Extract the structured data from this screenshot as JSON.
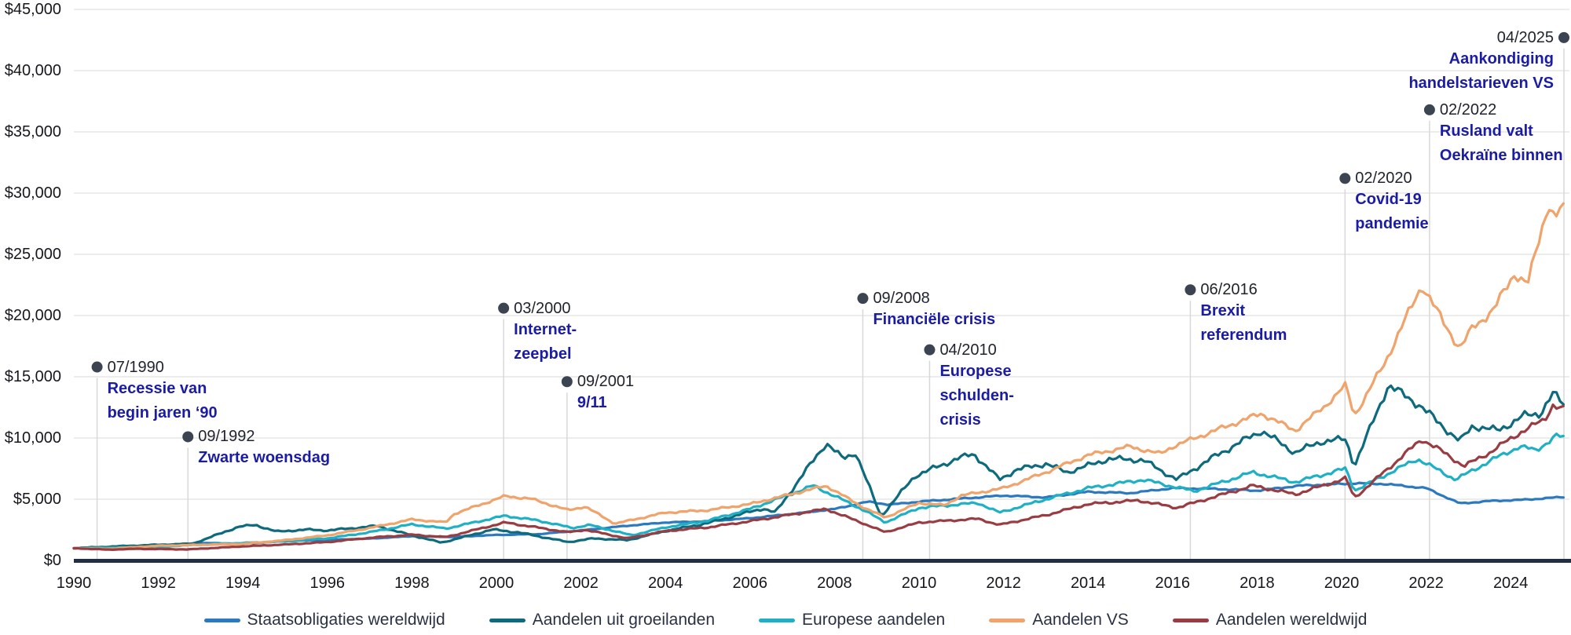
{
  "chart_data": {
    "type": "line",
    "title": "",
    "currency_prefix": "$",
    "y_axis": {
      "min": 0,
      "max": 45000,
      "step": 5000,
      "tick_labels": [
        "$0",
        "$5,000",
        "$10,000",
        "$15,000",
        "$20,000",
        "$25,000",
        "$30,000",
        "$35,000",
        "$40,000",
        "$45,000"
      ]
    },
    "x_axis": {
      "start_year": 1990,
      "end_year": 2025.33,
      "tick_years": [
        1990,
        1992,
        1994,
        1996,
        1998,
        2000,
        2002,
        2004,
        2006,
        2008,
        2010,
        2012,
        2014,
        2016,
        2018,
        2020,
        2022,
        2024
      ],
      "tick_labels": [
        "1990",
        "1992",
        "1994",
        "1996",
        "1998",
        "2000",
        "2002",
        "2004",
        "2006",
        "2008",
        "2010",
        "2012",
        "2014",
        "2016",
        "2018",
        "2020",
        "2022",
        "2024"
      ]
    },
    "grid": true,
    "gridline_color": "#e5e5e5",
    "axis_color": "#222e45",
    "annotation_style": {
      "dot_color": "#3b4450",
      "line_color": "#d8d8d8",
      "date_color": "#20242e",
      "text_color": "#1b1ca4"
    },
    "legend_position": "bottom-center",
    "series": [
      {
        "name": "Staatsobligaties wereldwijd",
        "color": "#2b79be",
        "volatility": 0.012,
        "points": [
          [
            1990,
            1000
          ],
          [
            1991,
            1120
          ],
          [
            1992,
            1250
          ],
          [
            1993,
            1420
          ],
          [
            1994,
            1380
          ],
          [
            1995,
            1580
          ],
          [
            1996,
            1680
          ],
          [
            1997,
            1780
          ],
          [
            1998,
            1980
          ],
          [
            1999,
            1920
          ],
          [
            2000,
            2080
          ],
          [
            2001,
            2150
          ],
          [
            2002,
            2450
          ],
          [
            2003,
            2800
          ],
          [
            2004,
            3100
          ],
          [
            2005,
            3200
          ],
          [
            2006,
            3450
          ],
          [
            2007,
            3800
          ],
          [
            2008,
            4200
          ],
          [
            2008.8,
            4800
          ],
          [
            2009.3,
            4550
          ],
          [
            2010,
            4800
          ],
          [
            2011,
            5050
          ],
          [
            2012,
            5300
          ],
          [
            2013,
            5150
          ],
          [
            2014,
            5600
          ],
          [
            2015,
            5500
          ],
          [
            2016,
            5900
          ],
          [
            2017,
            5850
          ],
          [
            2018,
            5700
          ],
          [
            2019,
            6100
          ],
          [
            2020.3,
            6300
          ],
          [
            2021,
            6250
          ],
          [
            2022,
            5900
          ],
          [
            2022.8,
            4650
          ],
          [
            2023.5,
            4850
          ],
          [
            2024.3,
            4950
          ],
          [
            2025.33,
            5200
          ]
        ]
      },
      {
        "name": "Aandelen uit groeilanden",
        "color": "#0e6a7d",
        "volatility": 0.032,
        "points": [
          [
            1990,
            1000
          ],
          [
            1991,
            1150
          ],
          [
            1992,
            1280
          ],
          [
            1992.8,
            1350
          ],
          [
            1993.9,
            2750
          ],
          [
            1994.3,
            2900
          ],
          [
            1994.8,
            2350
          ],
          [
            1995.5,
            2520
          ],
          [
            1996,
            2450
          ],
          [
            1997.2,
            2820
          ],
          [
            1997.6,
            2400
          ],
          [
            1998.7,
            1450
          ],
          [
            1999.9,
            2520
          ],
          [
            2000.5,
            2300
          ],
          [
            2001.7,
            1500
          ],
          [
            2002.3,
            1800
          ],
          [
            2003.1,
            1650
          ],
          [
            2004,
            2400
          ],
          [
            2005,
            3050
          ],
          [
            2006.3,
            4250
          ],
          [
            2006.6,
            3900
          ],
          [
            2007.8,
            9600
          ],
          [
            2008.2,
            8300
          ],
          [
            2008.5,
            8800
          ],
          [
            2009.1,
            3600
          ],
          [
            2009.9,
            6900
          ],
          [
            2010.9,
            8300
          ],
          [
            2011.3,
            8700
          ],
          [
            2011.9,
            6600
          ],
          [
            2012.3,
            7400
          ],
          [
            2013,
            7900
          ],
          [
            2013.5,
            7200
          ],
          [
            2014.5,
            8300
          ],
          [
            2015.3,
            8200
          ],
          [
            2016.1,
            6600
          ],
          [
            2017,
            8500
          ],
          [
            2018.1,
            10600
          ],
          [
            2018.9,
            8800
          ],
          [
            2019.5,
            9700
          ],
          [
            2020.1,
            9900
          ],
          [
            2020.3,
            7700
          ],
          [
            2021.1,
            14300
          ],
          [
            2021.8,
            12800
          ],
          [
            2022.8,
            9700
          ],
          [
            2023.1,
            11000
          ],
          [
            2023.7,
            10600
          ],
          [
            2024.3,
            11800
          ],
          [
            2024.7,
            12000
          ],
          [
            2025,
            13600
          ],
          [
            2025.33,
            12500
          ]
        ]
      },
      {
        "name": "Europese aandelen",
        "color": "#1eb1c5",
        "volatility": 0.026,
        "points": [
          [
            1990,
            1000
          ],
          [
            1991,
            1050
          ],
          [
            1992,
            1100
          ],
          [
            1993,
            1300
          ],
          [
            1994,
            1420
          ],
          [
            1995,
            1560
          ],
          [
            1996,
            1800
          ],
          [
            1997,
            2300
          ],
          [
            1998,
            2950
          ],
          [
            1998.8,
            2600
          ],
          [
            2000.2,
            3650
          ],
          [
            2001,
            3250
          ],
          [
            2001.8,
            2650
          ],
          [
            2002.2,
            2900
          ],
          [
            2003.2,
            2050
          ],
          [
            2004,
            2700
          ],
          [
            2005,
            3250
          ],
          [
            2006,
            4200
          ],
          [
            2007.5,
            6100
          ],
          [
            2008.7,
            4100
          ],
          [
            2009.2,
            3100
          ],
          [
            2010,
            4300
          ],
          [
            2011.4,
            4700
          ],
          [
            2011.9,
            3900
          ],
          [
            2013,
            5000
          ],
          [
            2014,
            5900
          ],
          [
            2015.3,
            6600
          ],
          [
            2016.5,
            5650
          ],
          [
            2017.9,
            7200
          ],
          [
            2018.9,
            6400
          ],
          [
            2020.1,
            7500
          ],
          [
            2020.3,
            5700
          ],
          [
            2021.8,
            8300
          ],
          [
            2022.7,
            6600
          ],
          [
            2023.5,
            8100
          ],
          [
            2024.2,
            9300
          ],
          [
            2024.6,
            9000
          ],
          [
            2025.1,
            10200
          ],
          [
            2025.33,
            9900
          ]
        ]
      },
      {
        "name": "Aandelen VS",
        "color": "#f0a36b",
        "volatility": 0.022,
        "points": [
          [
            1990,
            1000
          ],
          [
            1990.8,
            950
          ],
          [
            1992,
            1200
          ],
          [
            1994,
            1350
          ],
          [
            1995,
            1650
          ],
          [
            1996,
            2050
          ],
          [
            1997,
            2650
          ],
          [
            1998,
            3350
          ],
          [
            1998.8,
            3100
          ],
          [
            1999,
            3800
          ],
          [
            2000.2,
            5250
          ],
          [
            2000.8,
            5050
          ],
          [
            2001.7,
            4100
          ],
          [
            2002.1,
            4400
          ],
          [
            2002.8,
            3000
          ],
          [
            2004,
            3900
          ],
          [
            2005,
            4100
          ],
          [
            2006,
            4600
          ],
          [
            2007.8,
            6100
          ],
          [
            2008.7,
            4300
          ],
          [
            2009.2,
            3500
          ],
          [
            2010,
            4700
          ],
          [
            2010.6,
            4500
          ],
          [
            2011,
            5300
          ],
          [
            2012,
            5900
          ],
          [
            2013,
            7200
          ],
          [
            2014,
            8600
          ],
          [
            2015,
            9300
          ],
          [
            2015.7,
            8700
          ],
          [
            2016,
            9300
          ],
          [
            2017,
            10600
          ],
          [
            2018.1,
            12000
          ],
          [
            2018.9,
            10600
          ],
          [
            2019.6,
            12600
          ],
          [
            2020.1,
            14300
          ],
          [
            2020.3,
            11800
          ],
          [
            2020.8,
            14800
          ],
          [
            2021,
            16000
          ],
          [
            2021.9,
            22500
          ],
          [
            2022.4,
            19500
          ],
          [
            2022.8,
            17300
          ],
          [
            2023.1,
            19000
          ],
          [
            2023.6,
            20500
          ],
          [
            2024.1,
            23500
          ],
          [
            2024.4,
            22500
          ],
          [
            2024.9,
            29300
          ],
          [
            2025.05,
            27800
          ],
          [
            2025.2,
            29000
          ],
          [
            2025.33,
            27800
          ]
        ]
      },
      {
        "name": "Aandelen wereldwijd",
        "color": "#9a3d43",
        "volatility": 0.026,
        "points": [
          [
            1990,
            1000
          ],
          [
            1990.8,
            880
          ],
          [
            1991.5,
            950
          ],
          [
            1992.7,
            900
          ],
          [
            1994,
            1150
          ],
          [
            1995,
            1300
          ],
          [
            1996,
            1500
          ],
          [
            1997,
            1850
          ],
          [
            1998,
            2100
          ],
          [
            1998.8,
            1900
          ],
          [
            2000.2,
            3100
          ],
          [
            2001.7,
            2300
          ],
          [
            2002.1,
            2500
          ],
          [
            2003.1,
            1800
          ],
          [
            2004,
            2400
          ],
          [
            2005,
            2700
          ],
          [
            2006,
            3200
          ],
          [
            2007.8,
            4200
          ],
          [
            2008.7,
            3000
          ],
          [
            2009.2,
            2300
          ],
          [
            2010,
            3100
          ],
          [
            2011.4,
            3400
          ],
          [
            2011.9,
            2900
          ],
          [
            2013,
            3700
          ],
          [
            2014,
            4600
          ],
          [
            2015.2,
            4900
          ],
          [
            2016.1,
            4300
          ],
          [
            2017.9,
            6100
          ],
          [
            2018.9,
            5400
          ],
          [
            2020.1,
            6700
          ],
          [
            2020.3,
            5100
          ],
          [
            2021.9,
            9900
          ],
          [
            2022.2,
            9300
          ],
          [
            2022.9,
            7700
          ],
          [
            2023.5,
            8800
          ],
          [
            2024.2,
            10400
          ],
          [
            2024.8,
            11500
          ],
          [
            2025,
            12700
          ],
          [
            2025.33,
            12200
          ]
        ]
      }
    ],
    "annotations": [
      {
        "date": "07/1990",
        "year": 1990.55,
        "value": 15800,
        "lines": [
          "Recessie van",
          "begin jaren ‘90"
        ],
        "align": "left"
      },
      {
        "date": "09/1992",
        "year": 1992.7,
        "value": 10100,
        "lines": [
          "Zwarte woensdag"
        ],
        "align": "left"
      },
      {
        "date": "03/2000",
        "year": 2000.17,
        "value": 20600,
        "lines": [
          "Internet-",
          "zeepbel"
        ],
        "align": "left"
      },
      {
        "date": "09/2001",
        "year": 2001.67,
        "value": 14600,
        "lines": [
          "9/11"
        ],
        "align": "left"
      },
      {
        "date": "09/2008",
        "year": 2008.67,
        "value": 21400,
        "lines": [
          "Financiële crisis"
        ],
        "align": "left"
      },
      {
        "date": "04/2010",
        "year": 2010.25,
        "value": 17200,
        "lines": [
          "Europese",
          "schulden-",
          "crisis"
        ],
        "align": "left"
      },
      {
        "date": "06/2016",
        "year": 2016.42,
        "value": 22100,
        "lines": [
          "Brexit",
          "referendum"
        ],
        "align": "left"
      },
      {
        "date": "02/2020",
        "year": 2020.08,
        "value": 31200,
        "lines": [
          "Covid-19",
          "pandemie"
        ],
        "align": "left"
      },
      {
        "date": "02/2022",
        "year": 2022.08,
        "value": 36800,
        "lines": [
          "Rusland valt",
          "Oekraïne binnen"
        ],
        "align": "left"
      },
      {
        "date": "04/2025",
        "year": 2025.28,
        "value": 42700,
        "lines": [
          "Aankondiging",
          "handelstarieven VS"
        ],
        "align": "right"
      }
    ]
  },
  "legend": {
    "items": [
      "Staatsobligaties wereldwijd",
      "Aandelen uit groeilanden",
      "Europese aandelen",
      "Aandelen VS",
      "Aandelen wereldwijd"
    ]
  }
}
